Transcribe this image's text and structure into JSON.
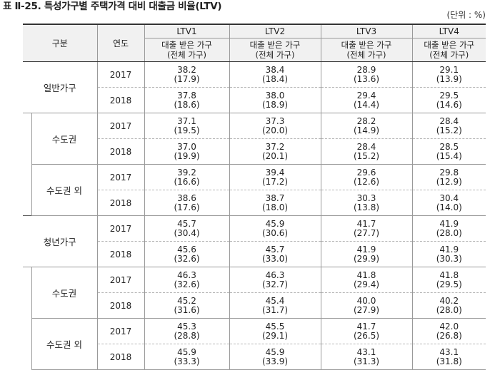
{
  "title": "표 Ⅱ-25. 특성가구별 주택가격 대비 대출금 비율(LTV)",
  "unit": "(단위 : %)",
  "headers": {
    "group": "구분",
    "year": "연도",
    "ltv": [
      "LTV1",
      "LTV2",
      "LTV3",
      "LTV4"
    ],
    "sub_line1": "대출 받은 가구",
    "sub_line2": "(전체 가구)"
  },
  "sections": [
    {
      "label": "일반가구",
      "rows": [
        {
          "year": "2017",
          "values": [
            [
              "38.2",
              "(17.9)"
            ],
            [
              "38.4",
              "(18.4)"
            ],
            [
              "28.9",
              "(13.6)"
            ],
            [
              "29.1",
              "(13.9)"
            ]
          ]
        },
        {
          "year": "2018",
          "values": [
            [
              "37.8",
              "(18.6)"
            ],
            [
              "38.0",
              "(18.9)"
            ],
            [
              "29.4",
              "(14.4)"
            ],
            [
              "29.5",
              "(14.6)"
            ]
          ]
        }
      ],
      "subgroups": [
        {
          "label": "수도권",
          "rows": [
            {
              "year": "2017",
              "values": [
                [
                  "37.1",
                  "(19.5)"
                ],
                [
                  "37.3",
                  "(20.0)"
                ],
                [
                  "28.2",
                  "(14.9)"
                ],
                [
                  "28.4",
                  "(15.2)"
                ]
              ]
            },
            {
              "year": "2018",
              "values": [
                [
                  "37.0",
                  "(19.9)"
                ],
                [
                  "37.2",
                  "(20.1)"
                ],
                [
                  "28.4",
                  "(15.2)"
                ],
                [
                  "28.5",
                  "(15.4)"
                ]
              ]
            }
          ]
        },
        {
          "label": "수도권 외",
          "rows": [
            {
              "year": "2017",
              "values": [
                [
                  "39.2",
                  "(16.6)"
                ],
                [
                  "39.4",
                  "(17.2)"
                ],
                [
                  "29.6",
                  "(12.6)"
                ],
                [
                  "29.8",
                  "(12.9)"
                ]
              ]
            },
            {
              "year": "2018",
              "values": [
                [
                  "38.6",
                  "(17.6)"
                ],
                [
                  "38.7",
                  "(18.0)"
                ],
                [
                  "30.3",
                  "(13.8)"
                ],
                [
                  "30.4",
                  "(14.0)"
                ]
              ]
            }
          ]
        }
      ]
    },
    {
      "label": "청년가구",
      "rows": [
        {
          "year": "2017",
          "values": [
            [
              "45.7",
              "(30.4)"
            ],
            [
              "45.9",
              "(30.6)"
            ],
            [
              "41.7",
              "(27.7)"
            ],
            [
              "41.9",
              "(28.0)"
            ]
          ]
        },
        {
          "year": "2018",
          "values": [
            [
              "45.6",
              "(32.6)"
            ],
            [
              "45.7",
              "(33.0)"
            ],
            [
              "41.9",
              "(29.9)"
            ],
            [
              "41.9",
              "(30.3)"
            ]
          ]
        }
      ],
      "subgroups": [
        {
          "label": "수도권",
          "rows": [
            {
              "year": "2017",
              "values": [
                [
                  "46.3",
                  "(32.6)"
                ],
                [
                  "46.3",
                  "(32.7)"
                ],
                [
                  "41.8",
                  "(29.4)"
                ],
                [
                  "41.8",
                  "(29.5)"
                ]
              ]
            },
            {
              "year": "2018",
              "values": [
                [
                  "45.2",
                  "(31.6)"
                ],
                [
                  "45.4",
                  "(31.7)"
                ],
                [
                  "40.0",
                  "(27.9)"
                ],
                [
                  "40.2",
                  "(28.0)"
                ]
              ]
            }
          ]
        },
        {
          "label": "수도권 외",
          "rows": [
            {
              "year": "2017",
              "values": [
                [
                  "45.3",
                  "(28.8)"
                ],
                [
                  "45.5",
                  "(29.1)"
                ],
                [
                  "41.7",
                  "(26.5)"
                ],
                [
                  "42.0",
                  "(26.8)"
                ]
              ]
            },
            {
              "year": "2018",
              "values": [
                [
                  "45.9",
                  "(33.3)"
                ],
                [
                  "45.9",
                  "(33.9)"
                ],
                [
                  "43.1",
                  "(31.3)"
                ],
                [
                  "43.1",
                  "(31.8)"
                ]
              ]
            }
          ]
        }
      ]
    }
  ]
}
